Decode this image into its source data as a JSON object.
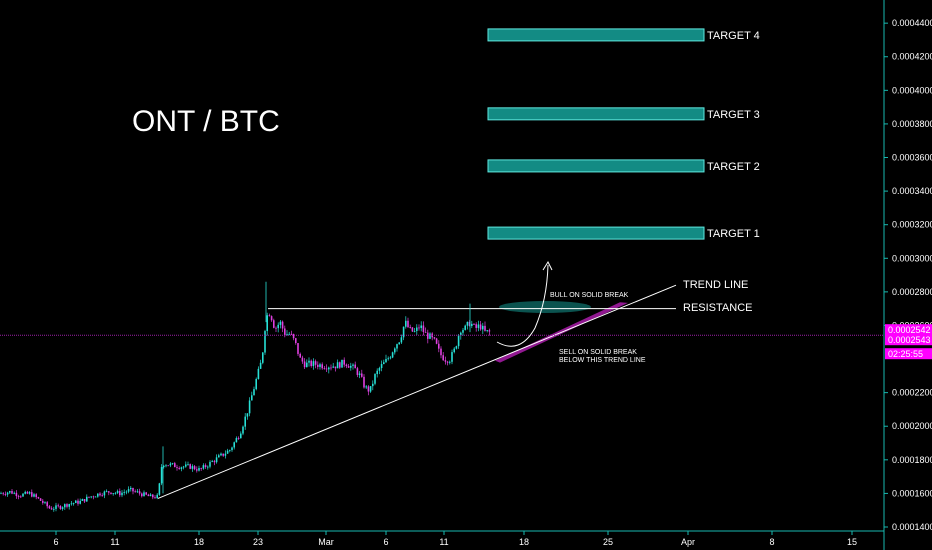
{
  "chart_data": {
    "type": "candlestick",
    "title": "ONT / BTC",
    "ylim": [
      0.00014,
      0.000452
    ],
    "y_ticks": [
      "0.0004400",
      "0.0004200",
      "0.0004000",
      "0.0003800",
      "0.0003600",
      "0.0003400",
      "0.0003200",
      "0.0003000",
      "0.0002800",
      "0.0002600",
      "0.0002200",
      "0.0002000",
      "0.0001800",
      "0.0001600",
      "0.0001400"
    ],
    "x_ticks": [
      "6",
      "11",
      "18",
      "23",
      "Mar",
      "6",
      "11",
      "18",
      "25",
      "Apr",
      "8",
      "15"
    ],
    "current_price_labels": [
      "0.0002542",
      "0.0002543",
      "02:25:55"
    ],
    "resistance": 0.00027,
    "trend_line": {
      "start": 0.000157,
      "end": 0.000284
    },
    "targets": [
      {
        "label": "TARGET 4",
        "value": 0.000433
      },
      {
        "label": "TARGET 3",
        "value": 0.000386
      },
      {
        "label": "TARGET 2",
        "value": 0.000355
      },
      {
        "label": "TARGET 1",
        "value": 0.000315
      }
    ],
    "annotations": {
      "trend_line_label": "TREND LINE",
      "resistance_label": "RESISTANCE",
      "bull_line1": "BULL ON SOLID BREAK",
      "sell_line1": "SELL ON SOLID BREAK",
      "sell_line2": "BELOW THIS TREND LINE"
    },
    "price_path": [
      [
        0,
        0.00016
      ],
      [
        10,
        0.000161
      ],
      [
        20,
        0.000159
      ],
      [
        30,
        0.00016
      ],
      [
        40,
        0.000156
      ],
      [
        50,
        0.000151
      ],
      [
        60,
        0.000152
      ],
      [
        70,
        0.000154
      ],
      [
        80,
        0.000155
      ],
      [
        90,
        0.000158
      ],
      [
        100,
        0.00016
      ],
      [
        110,
        0.000161
      ],
      [
        120,
        0.00016
      ],
      [
        130,
        0.000162
      ],
      [
        140,
        0.00016
      ],
      [
        150,
        0.000158
      ],
      [
        158,
        0.000158
      ],
      [
        162,
        0.000178
      ],
      [
        170,
        0.000177
      ],
      [
        180,
        0.000176
      ],
      [
        190,
        0.000176
      ],
      [
        200,
        0.000174
      ],
      [
        210,
        0.000178
      ],
      [
        220,
        0.000182
      ],
      [
        230,
        0.000186
      ],
      [
        240,
        0.000196
      ],
      [
        248,
        0.00021
      ],
      [
        255,
        0.000225
      ],
      [
        262,
        0.00024
      ],
      [
        266,
        0.000265
      ],
      [
        270,
        0.000268
      ],
      [
        275,
        0.000258
      ],
      [
        280,
        0.000262
      ],
      [
        285,
        0.000255
      ],
      [
        290,
        0.000255
      ],
      [
        295,
        0.00025
      ],
      [
        300,
        0.00024
      ],
      [
        305,
        0.000237
      ],
      [
        315,
        0.000237
      ],
      [
        325,
        0.000236
      ],
      [
        335,
        0.000236
      ],
      [
        345,
        0.000238
      ],
      [
        350,
        0.000236
      ],
      [
        355,
        0.000234
      ],
      [
        360,
        0.00023
      ],
      [
        365,
        0.000223
      ],
      [
        370,
        0.000221
      ],
      [
        375,
        0.00023
      ],
      [
        380,
        0.000235
      ],
      [
        385,
        0.000238
      ],
      [
        390,
        0.000242
      ],
      [
        395,
        0.000248
      ],
      [
        400,
        0.000252
      ],
      [
        405,
        0.000262
      ],
      [
        410,
        0.000257
      ],
      [
        415,
        0.000256
      ],
      [
        420,
        0.00026
      ],
      [
        425,
        0.000255
      ],
      [
        430,
        0.000253
      ],
      [
        435,
        0.00025
      ],
      [
        440,
        0.000243
      ],
      [
        445,
        0.00024
      ],
      [
        450,
        0.00024
      ],
      [
        455,
        0.000246
      ],
      [
        460,
        0.000258
      ],
      [
        465,
        0.000258
      ],
      [
        470,
        0.000262
      ],
      [
        475,
        0.000258
      ],
      [
        480,
        0.00026
      ],
      [
        485,
        0.000256
      ],
      [
        490,
        0.000256
      ]
    ]
  }
}
